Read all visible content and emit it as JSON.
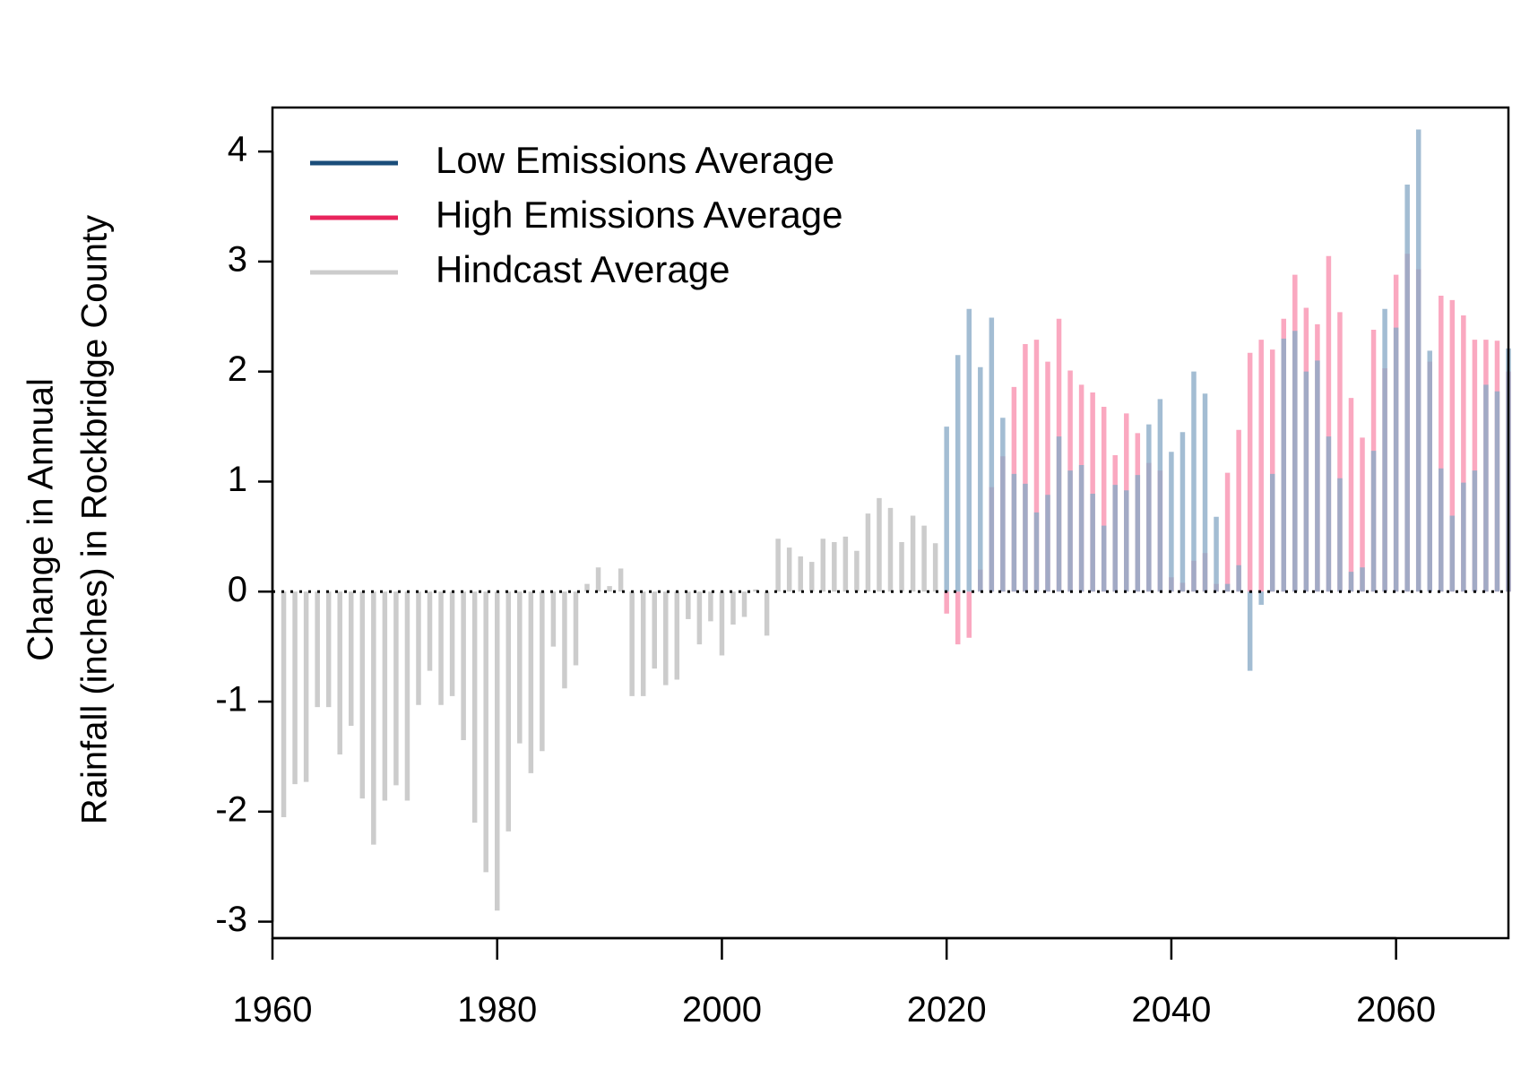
{
  "chart_data": {
    "type": "bar",
    "ylabel_line1": "Change in Annual",
    "ylabel_line2": "Rainfall (inches) in Rockbridge County",
    "xlim": [
      1960,
      2070
    ],
    "ylim": [
      -3.15,
      4.4
    ],
    "x_ticks": [
      1960,
      1980,
      2000,
      2020,
      2040,
      2060
    ],
    "y_ticks": [
      -3,
      -2,
      -1,
      0,
      1,
      2,
      3,
      4
    ],
    "zero_line": "dotted",
    "grid": false,
    "legend_position": "top-left",
    "series": [
      {
        "name": "Hindcast Average",
        "color": "#cccccc",
        "legend_color": "#cccccc",
        "x_start": 1961,
        "values": [
          -2.05,
          -1.75,
          -1.73,
          -1.05,
          -1.05,
          -1.48,
          -1.22,
          -1.88,
          -2.3,
          -1.9,
          -1.76,
          -1.9,
          -1.03,
          -0.72,
          -1.03,
          -0.95,
          -1.35,
          -2.1,
          -2.55,
          -2.9,
          -2.18,
          -1.38,
          -1.65,
          -1.45,
          -0.5,
          -0.88,
          -0.67,
          0.07,
          0.22,
          0.05,
          0.21,
          -0.95,
          -0.95,
          -0.7,
          -0.85,
          -0.8,
          -0.25,
          -0.48,
          -0.27,
          -0.58,
          -0.3,
          -0.23,
          0.02,
          -0.4,
          0.48,
          0.4,
          0.32,
          0.27,
          0.48,
          0.45,
          0.5,
          0.37,
          0.71,
          0.85,
          0.76,
          0.45,
          0.69,
          0.6,
          0.44
        ]
      },
      {
        "name": "High Emissions Average",
        "color": "rgba(248,139,171,0.75)",
        "legend_color": "#e8245c",
        "x_start": 2020,
        "values": [
          -0.2,
          -0.48,
          -0.42,
          0.2,
          0.95,
          1.23,
          1.86,
          2.25,
          2.29,
          2.09,
          2.48,
          2.01,
          1.88,
          1.81,
          1.68,
          1.24,
          1.62,
          1.44,
          1.17,
          1.1,
          0.13,
          0.08,
          0.28,
          0.35,
          0.07,
          1.08,
          1.47,
          2.17,
          2.29,
          2.2,
          2.48,
          2.88,
          2.58,
          2.43,
          3.05,
          2.54,
          1.76,
          1.4,
          2.38,
          2.03,
          2.88,
          3.07,
          2.93,
          2.09,
          2.69,
          2.65,
          2.51,
          2.29,
          2.29,
          2.28,
          2.0
        ]
      },
      {
        "name": "Low Emissions Average",
        "color": "rgba(137,170,198,0.78)",
        "legend_color": "#1a4d7a",
        "x_start": 2020,
        "values": [
          1.5,
          2.15,
          2.57,
          2.04,
          2.49,
          1.58,
          1.07,
          0.98,
          0.72,
          0.88,
          1.41,
          1.1,
          1.15,
          0.89,
          0.6,
          0.97,
          0.92,
          1.06,
          1.52,
          1.75,
          1.27,
          1.45,
          2.0,
          1.8,
          0.68,
          0.07,
          0.24,
          -0.72,
          -0.12,
          1.07,
          2.3,
          2.37,
          2.0,
          2.1,
          1.41,
          1.03,
          0.18,
          0.22,
          1.28,
          2.57,
          2.4,
          3.7,
          4.2,
          2.19,
          1.12,
          0.69,
          0.99,
          1.1,
          1.88,
          1.82,
          2.21
        ]
      }
    ]
  }
}
